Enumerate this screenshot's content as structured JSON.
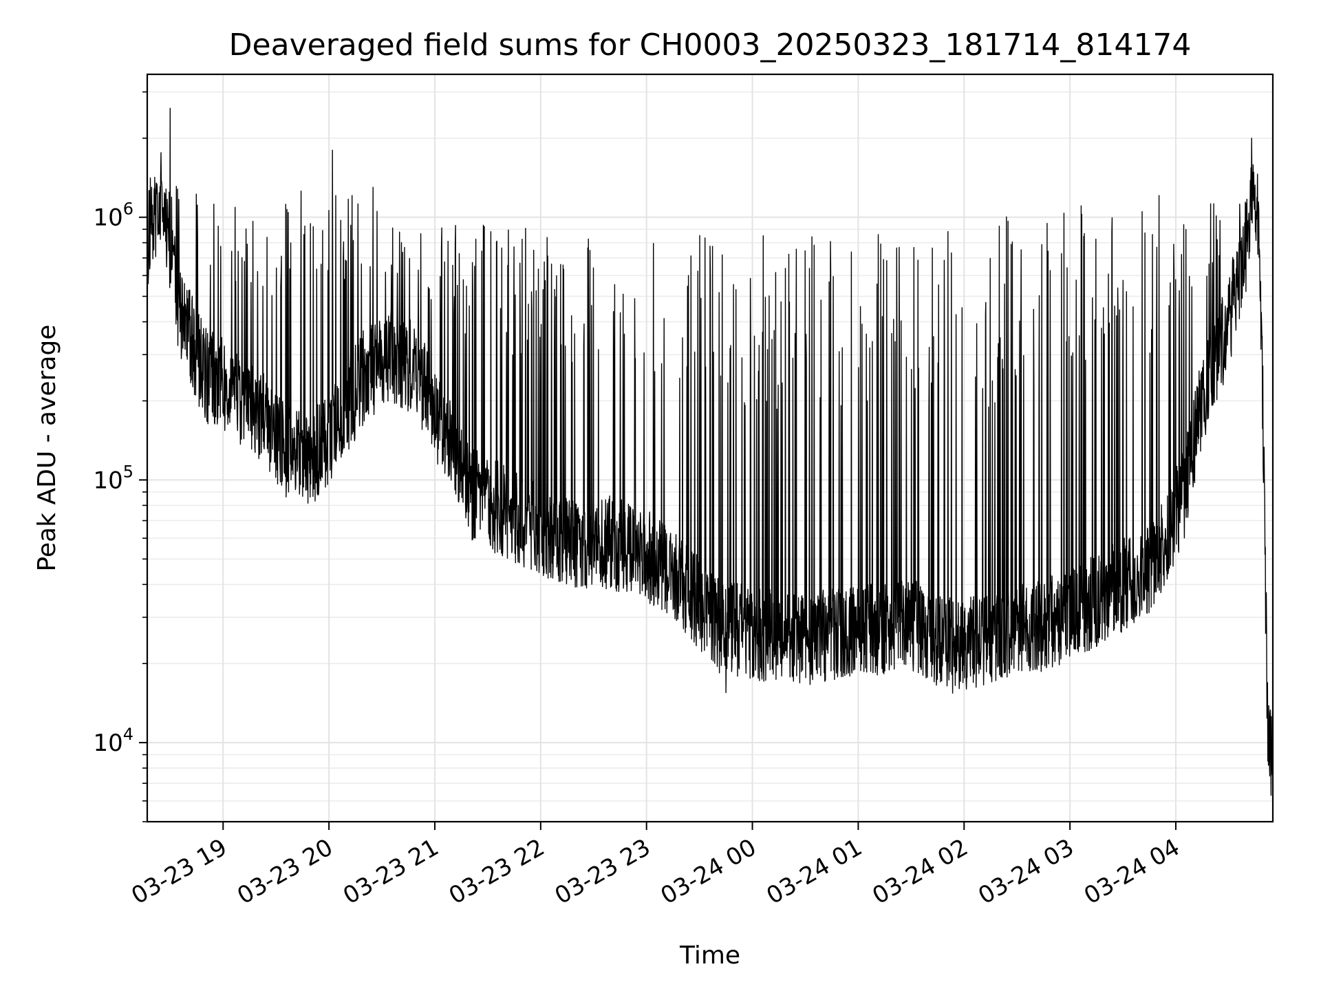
{
  "chart_data": {
    "type": "line",
    "title": "Deaveraged field sums for CH0003_20250323_181714_814174",
    "xlabel": "Time",
    "ylabel": "Peak ADU - average",
    "yscale": "log",
    "ylim": [
      5000,
      3500000
    ],
    "xlim": [
      "2025-03-23 18:17",
      "2025-03-24 04:55"
    ],
    "x_ticks": [
      {
        "t": "2025-03-23 19:00",
        "label": "03-23 19"
      },
      {
        "t": "2025-03-23 20:00",
        "label": "03-23 20"
      },
      {
        "t": "2025-03-23 21:00",
        "label": "03-23 21"
      },
      {
        "t": "2025-03-23 22:00",
        "label": "03-23 22"
      },
      {
        "t": "2025-03-23 23:00",
        "label": "03-23 23"
      },
      {
        "t": "2025-03-24 00:00",
        "label": "03-24 00"
      },
      {
        "t": "2025-03-24 01:00",
        "label": "03-24 01"
      },
      {
        "t": "2025-03-24 02:00",
        "label": "03-24 02"
      },
      {
        "t": "2025-03-24 03:00",
        "label": "03-24 03"
      },
      {
        "t": "2025-03-24 04:00",
        "label": "03-24 04"
      }
    ],
    "y_ticks": [
      {
        "value": 10000,
        "base": "10",
        "exp": "4"
      },
      {
        "value": 100000,
        "base": "10",
        "exp": "5"
      },
      {
        "value": 1000000,
        "base": "10",
        "exp": "6"
      }
    ],
    "grid": true,
    "line_color": "#000000",
    "series": [
      {
        "baseline": [
          [
            "2025-03-23 18:17",
            800000
          ],
          [
            "2025-03-23 18:25",
            1200000
          ],
          [
            "2025-03-23 18:35",
            450000
          ],
          [
            "2025-03-23 18:50",
            250000
          ],
          [
            "2025-03-23 19:05",
            220000
          ],
          [
            "2025-03-23 19:20",
            180000
          ],
          [
            "2025-03-23 19:35",
            130000
          ],
          [
            "2025-03-23 19:50",
            120000
          ],
          [
            "2025-03-23 20:05",
            160000
          ],
          [
            "2025-03-23 20:20",
            250000
          ],
          [
            "2025-03-23 20:35",
            300000
          ],
          [
            "2025-03-23 20:50",
            260000
          ],
          [
            "2025-03-23 21:05",
            150000
          ],
          [
            "2025-03-23 21:20",
            90000
          ],
          [
            "2025-03-23 21:40",
            75000
          ],
          [
            "2025-03-23 22:00",
            65000
          ],
          [
            "2025-03-23 22:20",
            58000
          ],
          [
            "2025-03-23 22:40",
            58000
          ],
          [
            "2025-03-23 23:00",
            52000
          ],
          [
            "2025-03-23 23:20",
            40000
          ],
          [
            "2025-03-23 23:40",
            28000
          ],
          [
            "2025-03-24 00:00",
            26000
          ],
          [
            "2025-03-24 00:30",
            25000
          ],
          [
            "2025-03-24 01:00",
            27000
          ],
          [
            "2025-03-24 01:30",
            28000
          ],
          [
            "2025-03-24 01:55",
            23000
          ],
          [
            "2025-03-24 02:20",
            26000
          ],
          [
            "2025-03-24 02:45",
            28000
          ],
          [
            "2025-03-24 03:10",
            33000
          ],
          [
            "2025-03-24 03:30",
            40000
          ],
          [
            "2025-03-24 03:50",
            50000
          ],
          [
            "2025-03-24 04:05",
            90000
          ],
          [
            "2025-03-24 04:15",
            200000
          ],
          [
            "2025-03-24 04:30",
            400000
          ],
          [
            "2025-03-24 04:40",
            800000
          ],
          [
            "2025-03-24 04:44",
            1200000
          ],
          [
            "2025-03-24 04:46",
            1150000
          ],
          [
            "2025-03-24 04:48",
            600000
          ],
          [
            "2025-03-24 04:50",
            100000
          ],
          [
            "2025-03-24 04:52",
            12000
          ],
          [
            "2025-03-24 04:54",
            9000
          ],
          [
            "2025-03-24 04:55",
            9500
          ]
        ],
        "spike_envelope": [
          [
            "2025-03-23 18:17",
            1500000
          ],
          [
            "2025-03-23 19:00",
            1200000
          ],
          [
            "2025-03-23 20:00",
            1300000
          ],
          [
            "2025-03-23 21:00",
            1000000
          ],
          [
            "2025-03-23 22:00",
            900000
          ],
          [
            "2025-03-23 23:00",
            900000
          ],
          [
            "2025-03-24 00:00",
            900000
          ],
          [
            "2025-03-24 01:00",
            900000
          ],
          [
            "2025-03-24 02:00",
            950000
          ],
          [
            "2025-03-24 03:00",
            1100000
          ],
          [
            "2025-03-24 04:00",
            1400000
          ],
          [
            "2025-03-24 04:40",
            1200000
          ]
        ],
        "peaks": [
          [
            "2025-03-23 18:30",
            2600000
          ],
          [
            "2025-03-24 04:43",
            2000000
          ],
          [
            "2025-03-23 20:02",
            1800000
          ],
          [
            "2025-03-23 20:25",
            1300000
          ]
        ],
        "minima": [
          [
            "2025-03-23 23:45",
            15500
          ],
          [
            "2025-03-24 01:55",
            16500
          ],
          [
            "2025-03-24 04:54",
            6300
          ]
        ]
      }
    ]
  }
}
